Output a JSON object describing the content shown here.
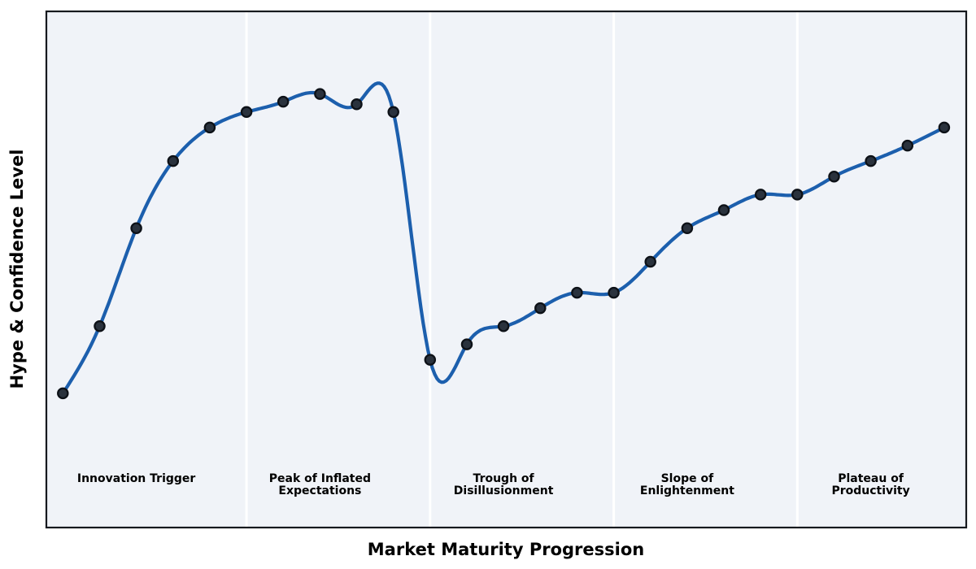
{
  "chart_data": {
    "type": "line",
    "title": "",
    "xlabel": "Market Maturity Progression",
    "ylabel": "Hype & Confidence Level",
    "x": [
      0,
      1,
      2,
      3,
      4,
      5,
      6,
      7,
      8,
      9,
      10,
      11,
      12,
      13,
      14,
      15,
      16,
      17,
      18,
      19,
      20,
      21,
      22,
      23,
      24
    ],
    "values": [
      26,
      39,
      58,
      71,
      77.5,
      80.5,
      82.5,
      84,
      82,
      80.5,
      32.5,
      35.5,
      39,
      42.5,
      45.5,
      45.5,
      51.5,
      58,
      61.5,
      64.5,
      64.5,
      68,
      71,
      74,
      77.5
    ],
    "xlim": [
      -0.45,
      24.6
    ],
    "ylim": [
      0,
      100
    ],
    "smoothing": "cubic-spline",
    "grid": false,
    "ticks": "none",
    "legend": "none",
    "phase_boundaries": [
      5,
      10,
      15,
      20
    ],
    "phases": [
      {
        "label": "Innovation Trigger",
        "center_x": 2
      },
      {
        "label": "Peak of Inflated\nExpectations",
        "center_x": 7
      },
      {
        "label": "Trough of\nDisillusionment",
        "center_x": 12
      },
      {
        "label": "Slope of\nEnlightenment",
        "center_x": 17
      },
      {
        "label": "Plateau of\nProductivity",
        "center_x": 22
      }
    ],
    "colors": {
      "line": "#1c5fad",
      "marker_fill": "#2a323d",
      "marker_edge": "#0d1117",
      "plot_bg": "#f0f3f8",
      "separator": "#ffffff",
      "spine": "#16191e",
      "figure_bg": "#ffffff",
      "text": "#000000"
    }
  }
}
